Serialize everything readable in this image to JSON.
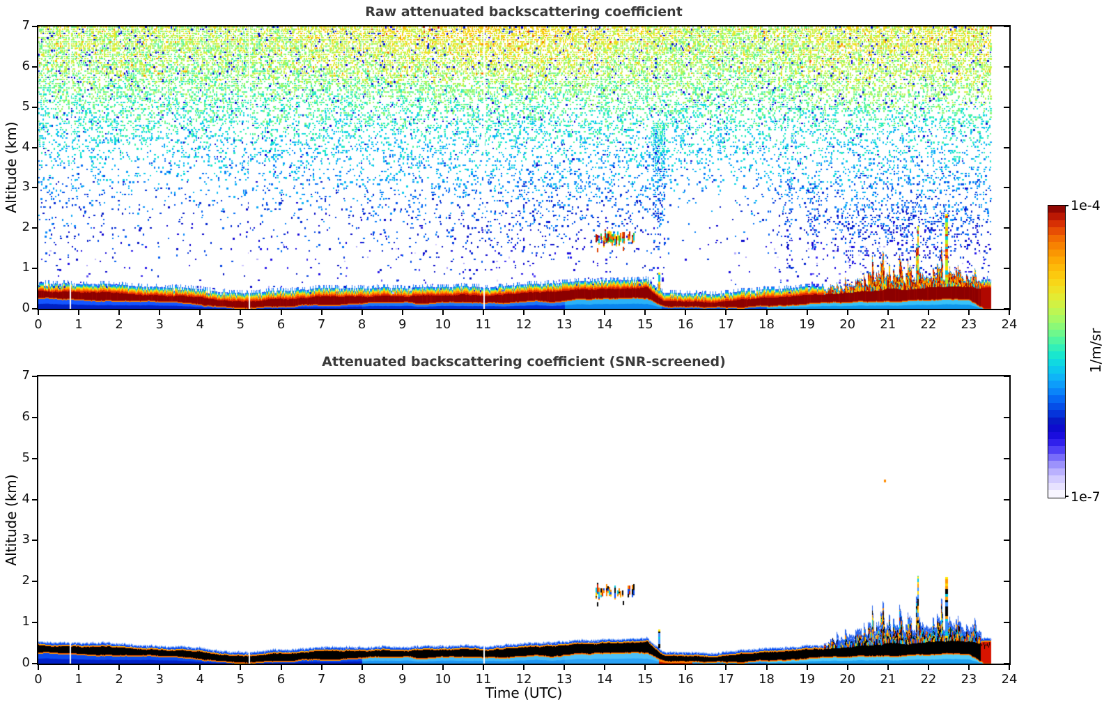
{
  "figure": {
    "background": "#ffffff",
    "title_color": "#3a3a3a",
    "axis_color": "#000000"
  },
  "panels": [
    {
      "title": "Raw attenuated backscattering coefficient",
      "ylabel": "Altitude (km)",
      "xlabel": "",
      "x_ticks": [
        0,
        1,
        2,
        3,
        4,
        5,
        6,
        7,
        8,
        9,
        10,
        11,
        12,
        13,
        14,
        15,
        16,
        17,
        18,
        19,
        20,
        21,
        22,
        23,
        24
      ],
      "y_ticks": [
        0,
        1,
        2,
        3,
        4,
        5,
        6,
        7
      ],
      "kind": "raw"
    },
    {
      "title": "Attenuated backscattering coefficient (SNR-screened)",
      "ylabel": "Altitude (km)",
      "xlabel": "Time (UTC)",
      "x_ticks": [
        0,
        1,
        2,
        3,
        4,
        5,
        6,
        7,
        8,
        9,
        10,
        11,
        12,
        13,
        14,
        15,
        16,
        17,
        18,
        19,
        20,
        21,
        22,
        23,
        24
      ],
      "y_ticks": [
        0,
        1,
        2,
        3,
        4,
        5,
        6,
        7
      ],
      "kind": "screened"
    }
  ],
  "colorbar": {
    "max_label": "1e-4",
    "min_label": "1e-7",
    "unit": "1/m/sr",
    "segments": 40,
    "stops": [
      [
        0.0,
        "#ffffff"
      ],
      [
        0.02,
        "#f4f1ff"
      ],
      [
        0.05,
        "#ded8ff"
      ],
      [
        0.08,
        "#c3baff"
      ],
      [
        0.11,
        "#a096fc"
      ],
      [
        0.14,
        "#7468fa"
      ],
      [
        0.17,
        "#4434f4"
      ],
      [
        0.2,
        "#2212e6"
      ],
      [
        0.23,
        "#0f06d2"
      ],
      [
        0.26,
        "#0718c4"
      ],
      [
        0.29,
        "#0536dc"
      ],
      [
        0.33,
        "#0560f2"
      ],
      [
        0.37,
        "#0b8cfb"
      ],
      [
        0.41,
        "#0fb2f8"
      ],
      [
        0.45,
        "#0cd2ea"
      ],
      [
        0.49,
        "#1ae8cc"
      ],
      [
        0.53,
        "#45f4a8"
      ],
      [
        0.57,
        "#78f985"
      ],
      [
        0.61,
        "#a4f966"
      ],
      [
        0.65,
        "#c8f44b"
      ],
      [
        0.69,
        "#e5ea31"
      ],
      [
        0.73,
        "#f7da1b"
      ],
      [
        0.77,
        "#fdc50c"
      ],
      [
        0.81,
        "#fdab04"
      ],
      [
        0.85,
        "#f98d01"
      ],
      [
        0.89,
        "#f16a02"
      ],
      [
        0.92,
        "#e44405"
      ],
      [
        0.95,
        "#cd2104"
      ],
      [
        0.98,
        "#a30b02"
      ],
      [
        1.0,
        "#730001"
      ]
    ]
  },
  "chart_data": {
    "type": "heatmap",
    "title": "Attenuated backscattering coefficient, raw (top) and SNR-screened (bottom)",
    "x_label": "Time (UTC)",
    "y_label": "Altitude (km)",
    "x_range": [
      0,
      24
    ],
    "y_range": [
      0,
      7
    ],
    "color_scale": {
      "min": "1e-7",
      "max": "1e-4",
      "unit": "1/m/sr",
      "scale": "log"
    },
    "data_end_hour": 23.55,
    "gap_hours": [
      0.78,
      5.2,
      11.0
    ],
    "layer_hours": [
      0,
      0.5,
      1,
      2,
      3,
      4,
      4.7,
      5.3,
      6,
      7,
      8,
      9,
      10,
      11,
      12,
      13,
      13.7,
      14.3,
      14.8,
      15.05,
      15.2,
      15.45,
      16,
      17,
      17.5,
      18,
      18.5,
      19,
      19.5,
      20,
      20.5,
      21,
      21.5,
      22,
      22.5,
      23,
      23.25,
      23.4,
      23.55
    ],
    "layer_core_bottom_km": [
      0.28,
      0.26,
      0.25,
      0.22,
      0.18,
      0.12,
      0.06,
      0.04,
      0.09,
      0.13,
      0.14,
      0.16,
      0.17,
      0.16,
      0.18,
      0.22,
      0.26,
      0.28,
      0.3,
      0.28,
      0.2,
      0.06,
      0.05,
      0.05,
      0.08,
      0.1,
      0.1,
      0.12,
      0.14,
      0.16,
      0.18,
      0.22,
      0.22,
      0.24,
      0.26,
      0.26,
      0.1,
      0.02,
      0.02
    ],
    "layer_core_top_km": [
      0.46,
      0.43,
      0.42,
      0.38,
      0.33,
      0.27,
      0.21,
      0.19,
      0.24,
      0.29,
      0.3,
      0.33,
      0.34,
      0.32,
      0.36,
      0.41,
      0.45,
      0.47,
      0.49,
      0.52,
      0.38,
      0.2,
      0.19,
      0.19,
      0.23,
      0.28,
      0.3,
      0.33,
      0.36,
      0.42,
      0.46,
      0.52,
      0.5,
      0.52,
      0.55,
      0.55,
      0.5,
      0.55,
      0.55
    ],
    "spike_region": {
      "start_hour": 19.4,
      "end_hour": 23.3,
      "amp_hours": [
        19.4,
        20,
        20.5,
        21,
        21.5,
        22,
        22.5,
        23,
        23.3
      ],
      "amp_km": [
        0.08,
        0.22,
        0.42,
        0.55,
        0.6,
        0.5,
        0.55,
        0.35,
        0.15
      ]
    },
    "cloud_layer": {
      "alt_km": 1.75,
      "half_thickness_km": 0.14,
      "segments_hours": [
        [
          13.78,
          13.86
        ],
        [
          13.9,
          14.1
        ],
        [
          14.13,
          14.27
        ],
        [
          14.3,
          14.4
        ],
        [
          14.43,
          14.52
        ],
        [
          14.56,
          14.61
        ],
        [
          14.67,
          14.72
        ]
      ],
      "virga_marks": [
        {
          "hour": 13.8,
          "alt_km": 1.5
        },
        {
          "hour": 14.45,
          "alt_km": 1.53
        }
      ]
    },
    "updraft_streaks": [
      {
        "hour": 15.32,
        "top_raw": 0.85,
        "top_screened": 0.78,
        "width": 3
      },
      {
        "hour": 21.72,
        "top_raw": 2.0,
        "top_screened": 2.08,
        "width": 2
      },
      {
        "hour": 22.42,
        "top_raw": 2.3,
        "top_screened": 2.05,
        "width": 4
      }
    ],
    "isolated_echo": {
      "hour": 20.92,
      "alt_km": 4.45
    },
    "end_column": {
      "start_hour": 23.28,
      "style": "red_to_ground"
    },
    "noise": {
      "alt_km": [
        0.7,
        1,
        1.5,
        2,
        2.5,
        3,
        3.5,
        4,
        4.5,
        5,
        5.5,
        6,
        6.5,
        7
      ],
      "fill_fraction": [
        0.022,
        0.03,
        0.045,
        0.065,
        0.09,
        0.135,
        0.2,
        0.28,
        0.38,
        0.5,
        0.63,
        0.76,
        0.86,
        0.92
      ],
      "colormap_pos": [
        0.22,
        0.24,
        0.27,
        0.3,
        0.33,
        0.37,
        0.41,
        0.45,
        0.49,
        0.53,
        0.57,
        0.6,
        0.62,
        0.64
      ]
    },
    "column_activity": {
      "hours": [
        0,
        0.8,
        1.5,
        2.5,
        3.5,
        4.5,
        5.2,
        6,
        7,
        8,
        9,
        10,
        12,
        13,
        14,
        15,
        15.6,
        16.2,
        17,
        17.8,
        18.3,
        18.8,
        19.5,
        20,
        20.5,
        21,
        22,
        23,
        23.5
      ],
      "mult": [
        1.7,
        1.5,
        1.1,
        0.85,
        0.7,
        0.75,
        1.1,
        1.0,
        1.05,
        1.2,
        1.8,
        2.1,
        2.2,
        2.3,
        2.2,
        1.9,
        0.45,
        0.4,
        0.45,
        0.7,
        1.6,
        1.6,
        2.2,
        2.4,
        2.8,
        2.8,
        2.9,
        2.7,
        2.2
      ]
    },
    "noise_plumes": [
      {
        "hour": 15.35,
        "half_width_hour": 0.14,
        "top_km": 4.6,
        "mult": 3.4
      },
      {
        "hour": 18.55,
        "half_width_hour": 0.12,
        "top_km": 3.2,
        "mult": 2.8
      },
      {
        "hour": 19.15,
        "half_width_hour": 0.15,
        "top_km": 3.1,
        "mult": 2.8
      },
      {
        "hour": 21.6,
        "half_width_hour": 1.9,
        "top_km": 2.6,
        "mult": 1.8
      }
    ]
  },
  "style": {
    "below_fill_raw": [
      [
        "0",
        "#0022c4",
        "#1456ff"
      ],
      [
        "8",
        "#0030d8",
        "#1e78f8"
      ],
      [
        "13",
        "#0a86ee",
        "#2ab2f8"
      ],
      [
        "15.4",
        "#0046dc",
        "#1874ee"
      ],
      [
        "18",
        "#0e96ea",
        "#38c2f8"
      ]
    ],
    "below_fill_screened": [
      [
        "0",
        "#0020c8",
        "#0a4af0"
      ],
      [
        "8",
        "#1e96f4",
        "#44baf8"
      ],
      [
        "13",
        "#2aa2f6",
        "#4cc0fa"
      ],
      [
        "15.4",
        "#1684f0",
        "#3cb0f8"
      ],
      [
        "18",
        "#1ea2f2",
        "#52ccfa"
      ]
    ],
    "band_core_raw": "#8c0000",
    "band_core_screened": "#000000",
    "edge_above_raw": [
      [
        "#e02800",
        2
      ],
      [
        "#ff7000",
        2
      ],
      [
        "#ffc800",
        2
      ],
      [
        "#d8ee30",
        1
      ],
      [
        "#58e878",
        1
      ],
      [
        "#00d2cc",
        1
      ],
      [
        "#0f8cfb",
        2
      ],
      [
        "#3a50f0",
        1
      ]
    ],
    "edge_below_raw": [
      [
        "#c83000",
        1
      ],
      [
        "#ff8800",
        1
      ]
    ],
    "edge_above_screened": [
      [
        "#ff6000",
        1
      ],
      [
        "#ffc400",
        1
      ],
      [
        "#0444f4",
        2
      ],
      [
        "#3c86f8",
        1
      ],
      [
        "#a8c6fc",
        1
      ]
    ],
    "edge_below_screened": [
      [
        "#e04800",
        1
      ],
      [
        "#ff9c00",
        1
      ]
    ],
    "spike_colors_raw": [
      "#b01000",
      "#e83000",
      "#ff7000",
      "#ffb400",
      "#8c0000",
      "#ffd800",
      "#00c0e0"
    ],
    "spike_colors_screened": [
      "#000000",
      "#0646f0",
      "#ff9000",
      "#ffd000",
      "#cc2000",
      "#00c2e8",
      "#3a8ef8",
      "#000000"
    ],
    "cloud_colors_raw": [
      "#b81400",
      "#b81400",
      "#ff6a00",
      "#ffd400",
      "#7c0000",
      "#28c040",
      "#00c8d8"
    ],
    "cloud_colors_screened": [
      "#000000",
      "#000000",
      "#0648ee",
      "#ffcc00",
      "#ff8800",
      "#00c8e0",
      "#d82800"
    ],
    "streak_colors_raw": [
      "#ff9800",
      "#ffd400",
      "#e83000",
      "#00c8e0",
      "#b0f020"
    ],
    "streak_colors_screened": [
      "#ffd400",
      "#00c8e0",
      "#000000",
      "#ff9800",
      "#3a8ef8"
    ],
    "envelope_screened": "#2a66ee",
    "envelope_light": "#a8c6fc",
    "lavender": "#c9c2fb",
    "echo_color": "#ff8c00"
  }
}
